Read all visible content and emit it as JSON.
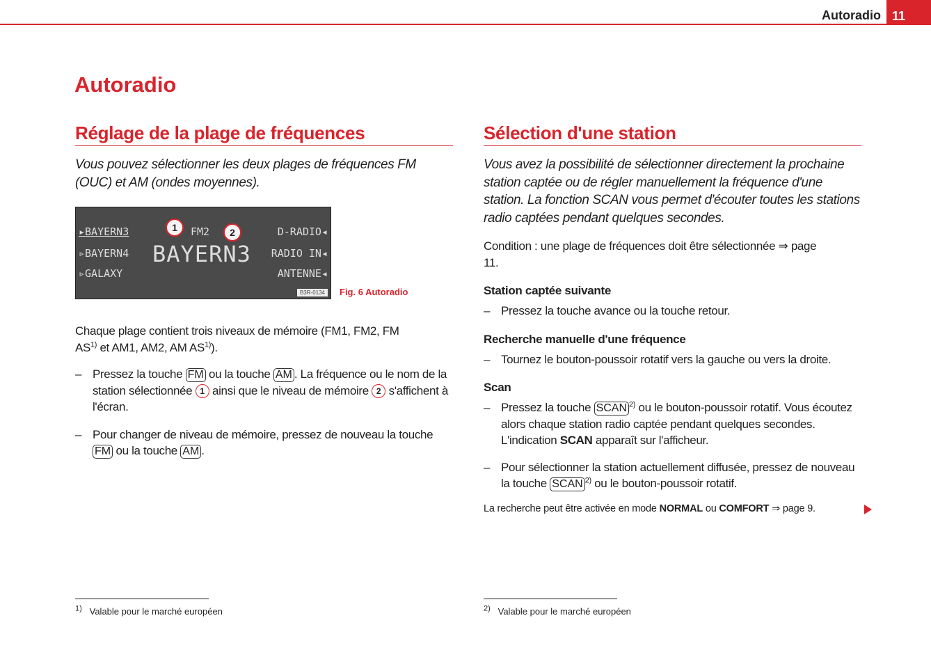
{
  "header": {
    "title": "Autoradio",
    "page_number": "11"
  },
  "main_title": "Autoradio",
  "left": {
    "heading": "Réglage de la plage de fréquences",
    "intro": "Vous pouvez sélectionner les deux plages de fréquences FM (OUC) et AM (ondes moyennes).",
    "figure": {
      "left_items": [
        "BAYERN3",
        "BAYERN4",
        "GALAXY"
      ],
      "right_items": [
        "D-RADIO",
        "RADIO IN",
        "ANTENNE"
      ],
      "band": "FM2",
      "station": "BAYERN3",
      "callout1": "1",
      "callout2": "2",
      "code": "B3R-0134",
      "caption": "Fig. 6   Autoradio"
    },
    "para": {
      "a": "Chaque plage contient trois niveaux de mémoire (FM1, FM2, FM AS",
      "sup1": "1)",
      "b": " et AM1, AM2, AM AS",
      "sup2": "1)",
      "c": ")."
    },
    "bullet1": {
      "a": "Pressez la touche ",
      "key1": "FM",
      "b": " ou la touche ",
      "key2": "AM",
      "c": ". La fréquence ou le nom de la station sélectionnée ",
      "n1": "1",
      "d": " ainsi que le niveau de mémoire ",
      "n2": "2",
      "e": " s'affichent à l'écran."
    },
    "bullet2": {
      "a": "Pour changer de niveau de mémoire, pressez de nouveau la touche ",
      "key1": "FM",
      "b": " ou la touche ",
      "key2": "AM",
      "c": "."
    },
    "footnote": {
      "mark": "1)",
      "text": "Valable pour le marché européen"
    }
  },
  "right": {
    "heading": "Sélection d'une station",
    "intro": "Vous avez la possibilité de sélectionner directement la prochaine station captée ou de régler manuellement la fréquence d'une station. La fonction SCAN vous permet d'écouter toutes les stations radio captées pendant quelques secondes.",
    "condition": "Condition : une plage de fréquences doit être sélectionnée ⇒ page 11.",
    "sub1": {
      "title": "Station captée suivante",
      "bullet": "Pressez la touche avance ou la touche retour."
    },
    "sub2": {
      "title": "Recherche manuelle d'une fréquence",
      "bullet": "Tournez le bouton-poussoir rotatif vers la gauche ou vers la droite."
    },
    "sub3": {
      "title": "Scan",
      "b1": {
        "a": "Pressez la touche ",
        "key": "SCAN",
        "sup": "2)",
        "b": " ou le bouton-poussoir rotatif. Vous écoutez alors chaque station radio captée pendant quelques secondes. L'indication ",
        "bold": "SCAN",
        "c": " apparaît sur l'afficheur."
      },
      "b2": {
        "a": "Pour sélectionner la station actuellement diffusée, pressez de nouveau la touche ",
        "key": "SCAN",
        "sup": "2)",
        "b": " ou le bouton-poussoir rotatif."
      }
    },
    "note": {
      "a": "La recherche peut être activée en mode ",
      "b1": "NORMAL",
      "b": " ou ",
      "b2": "COMFORT",
      "c": " ⇒ page 9."
    },
    "footnote": {
      "mark": "2)",
      "text": "Valable pour le marché européen"
    }
  },
  "dash": "–"
}
